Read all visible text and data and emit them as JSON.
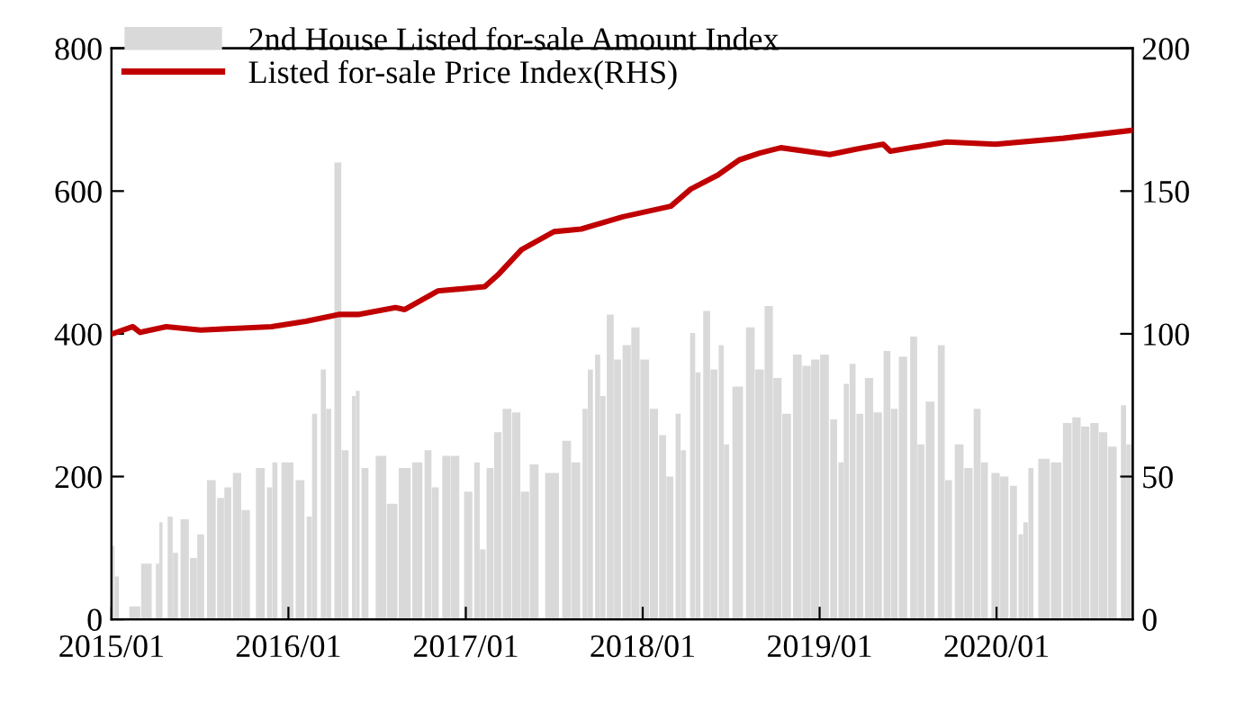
{
  "chart_data": {
    "type": "bar",
    "xlim": [
      "2015-01-01",
      "2020-10-08"
    ],
    "xticks": [
      {
        "value": "2015-01-01",
        "label": "2015/01"
      },
      {
        "value": "2016-01-01",
        "label": "2016/01"
      },
      {
        "value": "2017-01-01",
        "label": "2017/01"
      },
      {
        "value": "2018-01-01",
        "label": "2018/01"
      },
      {
        "value": "2019-01-01",
        "label": "2019/01"
      },
      {
        "value": "2020-01-01",
        "label": "2020/01"
      }
    ],
    "ylim": [
      0,
      800
    ],
    "yticks": [
      0,
      200,
      400,
      600,
      800
    ],
    "y2lim": [
      0,
      200
    ],
    "y2ticks": [
      0,
      50,
      100,
      150,
      200
    ],
    "legend": "top left",
    "grid": false,
    "series": [
      {
        "name": "2nd House Listed for-sale Amount Index",
        "color": "#d9d9d9",
        "x": [
          "2015-01-03",
          "2015-01-12",
          "2015-02-18",
          "2015-03-14",
          "2015-04-06",
          "2015-04-13",
          "2015-05-02",
          "2015-05-13",
          "2015-06-01",
          "2015-06-19",
          "2015-07-04",
          "2015-07-26",
          "2015-08-14",
          "2015-08-29",
          "2015-09-17",
          "2015-10-05",
          "2015-11-04",
          "2015-11-23",
          "2015-12-04",
          "2015-12-30",
          "2016-01-25",
          "2016-02-13",
          "2016-02-24",
          "2016-03-13",
          "2016-03-24",
          "2016-04-12",
          "2016-04-27",
          "2016-05-15",
          "2016-05-23",
          "2016-06-07",
          "2016-07-10",
          "2016-08-02",
          "2016-08-28",
          "2016-09-23",
          "2016-10-15",
          "2016-10-30",
          "2016-11-22",
          "2016-12-10",
          "2017-01-06",
          "2017-01-24",
          "2017-02-05",
          "2017-02-20",
          "2017-03-08",
          "2017-03-27",
          "2017-04-15",
          "2017-05-03",
          "2017-05-22",
          "2017-06-28",
          "2017-07-28",
          "2017-08-16",
          "2017-09-04",
          "2017-09-15",
          "2017-09-30",
          "2017-10-11",
          "2017-10-26",
          "2017-11-10",
          "2017-11-29",
          "2017-12-17",
          "2018-01-05",
          "2018-01-24",
          "2018-02-11",
          "2018-02-26",
          "2018-03-15",
          "2018-03-26",
          "2018-04-14",
          "2018-04-25",
          "2018-05-13",
          "2018-05-28",
          "2018-06-12",
          "2018-06-23",
          "2018-07-16",
          "2018-08-11",
          "2018-08-30",
          "2018-09-18",
          "2018-10-06",
          "2018-10-25",
          "2018-11-16",
          "2018-12-05",
          "2018-12-23",
          "2019-01-11",
          "2019-01-30",
          "2019-02-14",
          "2019-02-25",
          "2019-03-10",
          "2019-03-25",
          "2019-04-13",
          "2019-05-01",
          "2019-05-20",
          "2019-06-04",
          "2019-06-22",
          "2019-07-14",
          "2019-07-29",
          "2019-08-17",
          "2019-09-09",
          "2019-09-24",
          "2019-10-16",
          "2019-11-04",
          "2019-11-22",
          "2019-12-07",
          "2019-12-30",
          "2020-01-17",
          "2020-02-05",
          "2020-02-20",
          "2020-03-01",
          "2020-03-12",
          "2020-04-08",
          "2020-05-03",
          "2020-05-26",
          "2020-06-14",
          "2020-07-02",
          "2020-07-21",
          "2020-08-08",
          "2020-08-27",
          "2020-09-19",
          "2020-09-30"
        ],
        "values": [
          103,
          60,
          18,
          78,
          78,
          136,
          144,
          93,
          140,
          86,
          119,
          195,
          170,
          185,
          205,
          153,
          212,
          185,
          220,
          220,
          195,
          144,
          288,
          350,
          295,
          640,
          237,
          313,
          320,
          212,
          229,
          162,
          212,
          220,
          237,
          185,
          229,
          229,
          179,
          220,
          98,
          212,
          262,
          295,
          290,
          179,
          217,
          205,
          250,
          220,
          295,
          350,
          371,
          313,
          427,
          364,
          384,
          409,
          364,
          295,
          258,
          200,
          288,
          237,
          401,
          346,
          432,
          350,
          384,
          245,
          326,
          409,
          350,
          439,
          338,
          288,
          371,
          355,
          364,
          371,
          280,
          220,
          330,
          358,
          288,
          338,
          290,
          376,
          295,
          368,
          396,
          245,
          305,
          384,
          195,
          245,
          212,
          295,
          220,
          205,
          200,
          187,
          119,
          136,
          212,
          225,
          220,
          275,
          283,
          270,
          275,
          262,
          242,
          300,
          245
        ]
      },
      {
        "name": "Listed for-sale Price Index(RHS)",
        "type": "line",
        "axis": "y2",
        "color": "#c00000",
        "x": [
          "2015-01-03",
          "2015-02-14",
          "2015-03-01",
          "2015-04-24",
          "2015-07-04",
          "2015-11-27",
          "2016-02-06",
          "2016-04-16",
          "2016-05-26",
          "2016-08-09",
          "2016-08-28",
          "2016-11-04",
          "2017-02-09",
          "2017-03-08",
          "2017-04-26",
          "2017-07-02",
          "2017-08-27",
          "2017-11-21",
          "2018-02-28",
          "2018-04-10",
          "2018-06-05",
          "2018-07-19",
          "2018-08-30",
          "2018-10-13",
          "2019-01-22",
          "2019-03-17",
          "2019-05-12",
          "2019-05-27",
          "2019-09-20",
          "2019-12-30",
          "2020-05-18",
          "2020-10-07"
        ],
        "values": [
          100,
          102.5,
          100.5,
          102.5,
          101.3,
          102.5,
          104.4,
          106.8,
          106.8,
          109.2,
          108.5,
          115,
          116.5,
          120.6,
          129.5,
          135.8,
          136.7,
          141,
          144.7,
          150.7,
          155.6,
          160.9,
          163.3,
          165.2,
          162.8,
          164.7,
          166.4,
          164,
          167.2,
          166.4,
          168.5,
          171.3
        ]
      }
    ]
  }
}
